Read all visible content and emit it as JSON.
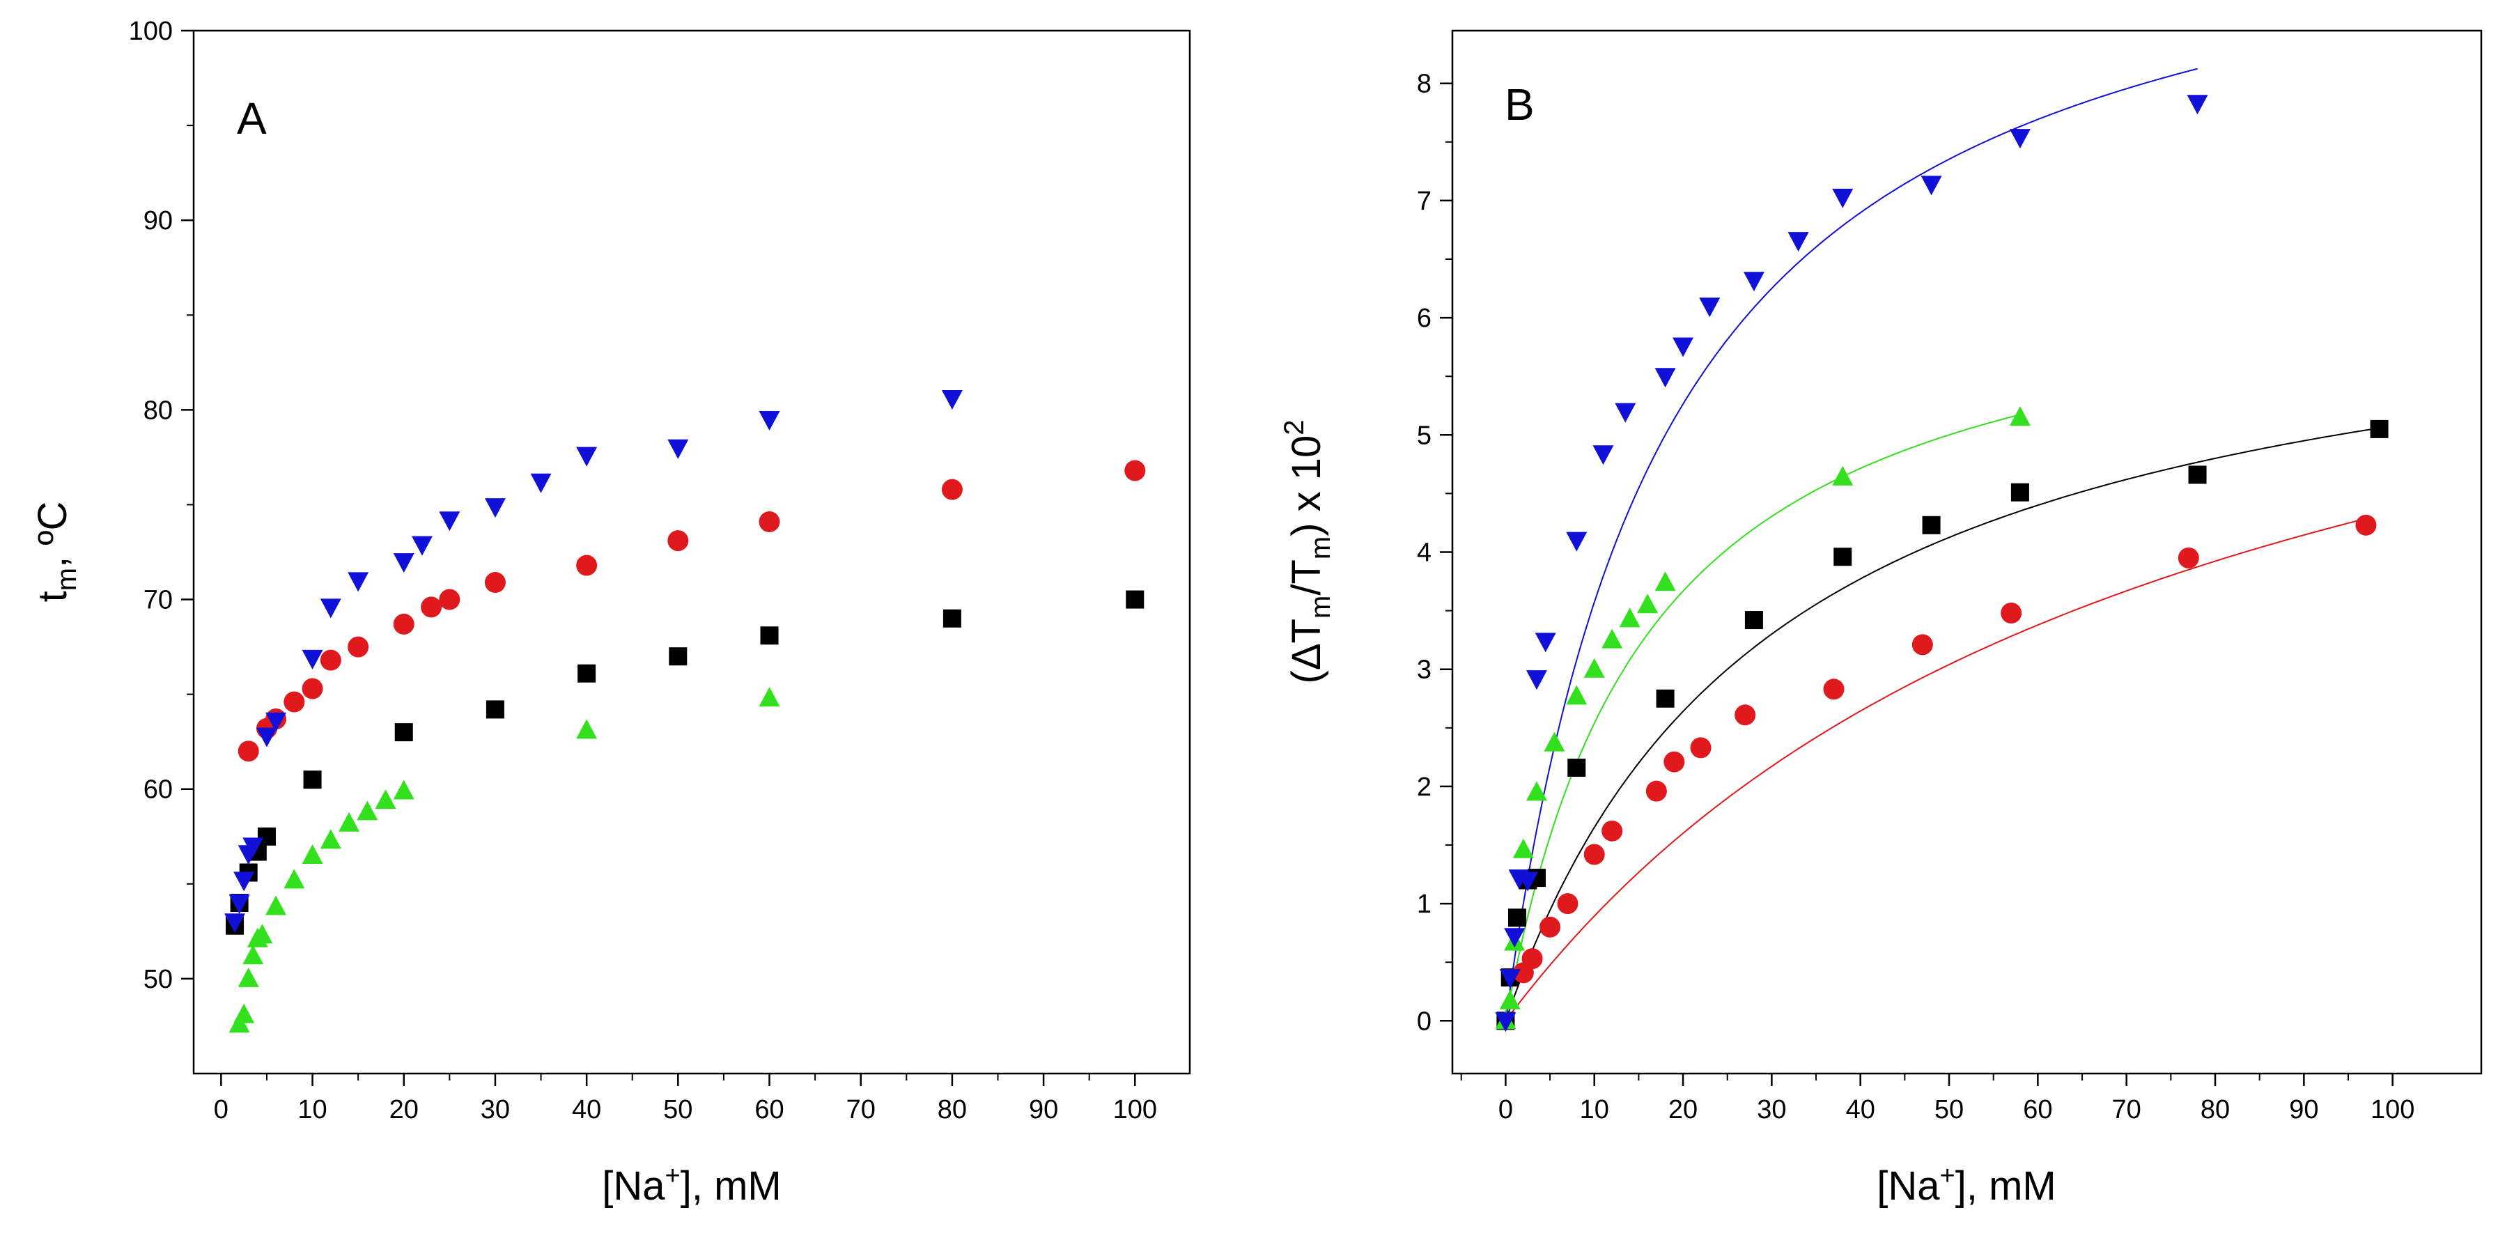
{
  "chart_data": [
    {
      "id": "A",
      "type": "scatter",
      "panel_label": "A",
      "xlabel": {
        "pre": "[Na",
        "sup": "+",
        "post": "], mM"
      },
      "ylabel": {
        "pre": "t",
        "sub": "m",
        "post": ", ºC"
      },
      "xlim": [
        -3,
        106
      ],
      "ylim": [
        45,
        100
      ],
      "xticks": [
        0,
        10,
        20,
        30,
        40,
        50,
        60,
        70,
        80,
        90,
        100
      ],
      "yticks": [
        50,
        60,
        70,
        80,
        90,
        100
      ],
      "xminor": 5,
      "yminor": 5,
      "series": [
        {
          "name": "black",
          "marker": "square",
          "color": "#000000",
          "x": [
            1.5,
            2,
            3,
            4,
            5,
            10,
            20,
            30,
            40,
            50,
            60,
            80,
            100
          ],
          "y": [
            52.8,
            54.0,
            55.6,
            56.7,
            57.5,
            60.5,
            63.0,
            64.2,
            66.1,
            67.0,
            68.1,
            69.0,
            70.0
          ]
        },
        {
          "name": "red",
          "marker": "circle",
          "color": "#e0191e",
          "x": [
            3,
            5,
            6,
            8,
            10,
            12,
            15,
            20,
            23,
            25,
            30,
            40,
            50,
            60,
            80,
            100
          ],
          "y": [
            62.0,
            63.2,
            63.7,
            64.6,
            65.3,
            66.8,
            67.5,
            68.7,
            69.6,
            70.0,
            70.9,
            71.8,
            73.1,
            74.1,
            75.8,
            76.8
          ]
        },
        {
          "name": "green",
          "marker": "triangle-up",
          "color": "#33e01d",
          "x": [
            2,
            2.5,
            3,
            3.5,
            4,
            4.5,
            6,
            8,
            10,
            12,
            14,
            16,
            18,
            20,
            40,
            60
          ],
          "y": [
            47.6,
            48.1,
            50.0,
            51.2,
            52.1,
            52.3,
            53.8,
            55.2,
            56.5,
            57.3,
            58.2,
            58.8,
            59.4,
            59.9,
            63.1,
            64.8
          ]
        },
        {
          "name": "blue",
          "marker": "triangle-down",
          "color": "#1010d8",
          "x": [
            1.5,
            2,
            2.5,
            3,
            3.5,
            5,
            6,
            10,
            12,
            15,
            20,
            22,
            25,
            30,
            35,
            40,
            50,
            60,
            80
          ],
          "y": [
            53.0,
            54.0,
            55.2,
            56.6,
            57.0,
            62.8,
            63.6,
            66.9,
            69.6,
            71.0,
            72.0,
            72.9,
            74.2,
            74.9,
            76.2,
            77.6,
            78.0,
            79.5,
            80.6
          ]
        }
      ]
    },
    {
      "id": "B",
      "type": "scatter",
      "panel_label": "B",
      "xlabel": {
        "pre": "[Na",
        "sup": "+",
        "post": "], mM"
      },
      "ylabel": {
        "pre": "(ΔT",
        "sub1": "m",
        "mid": "/T",
        "sub2": "m",
        "post": ") x 10",
        "sup": "2"
      },
      "xlim": [
        -6,
        110
      ],
      "ylim": [
        -0.45,
        8.45
      ],
      "xticks": [
        0,
        10,
        20,
        30,
        40,
        50,
        60,
        70,
        80,
        90,
        100
      ],
      "yticks": [
        0,
        1,
        2,
        3,
        4,
        5,
        6,
        7,
        8
      ],
      "xminor": 5,
      "yminor": 0.5,
      "series": [
        {
          "name": "black",
          "marker": "square",
          "color": "#000000",
          "x": [
            0,
            0.5,
            1.3,
            2.5,
            3.5,
            8,
            18,
            28,
            38,
            48,
            58,
            78,
            98.5
          ],
          "y": [
            0.0,
            0.37,
            0.88,
            1.2,
            1.22,
            2.16,
            2.75,
            3.42,
            3.96,
            4.23,
            4.51,
            4.66,
            5.05
          ],
          "fit": {
            "a": 6.6,
            "k": 30,
            "xmax": 98.5,
            "color": "#000000"
          }
        },
        {
          "name": "red",
          "marker": "circle",
          "color": "#e0191e",
          "x": [
            2,
            3,
            5,
            7,
            10,
            12,
            17,
            19,
            22,
            27,
            37,
            47,
            57,
            77,
            97
          ],
          "y": [
            0.41,
            0.53,
            0.8,
            1.0,
            1.42,
            1.62,
            1.96,
            2.21,
            2.33,
            2.61,
            2.83,
            3.21,
            3.48,
            3.95,
            4.23
          ],
          "fit": {
            "a": 7.6,
            "k": 75,
            "xmax": 97,
            "color": "#e0191e"
          }
        },
        {
          "name": "green",
          "marker": "triangle-up",
          "color": "#33e01d",
          "x": [
            0,
            0.5,
            1,
            2,
            3.5,
            5.5,
            8,
            10,
            12,
            14,
            16,
            18,
            38,
            58
          ],
          "y": [
            0.0,
            0.17,
            0.67,
            1.46,
            1.95,
            2.37,
            2.77,
            3.0,
            3.25,
            3.43,
            3.55,
            3.74,
            4.64,
            5.15
          ],
          "fit": {
            "a": 6.6,
            "k": 16,
            "xmax": 58,
            "color": "#33e01d"
          }
        },
        {
          "name": "blue",
          "marker": "triangle-down",
          "color": "#1010d8",
          "x": [
            0,
            0.5,
            1,
            1.5,
            2.5,
            3.5,
            4.5,
            8,
            11,
            13.5,
            18,
            20,
            23,
            28,
            33,
            38,
            48,
            58,
            78
          ],
          "y": [
            0.0,
            0.37,
            0.72,
            1.22,
            1.2,
            2.92,
            3.24,
            4.1,
            4.84,
            5.2,
            5.5,
            5.76,
            6.1,
            6.32,
            6.66,
            7.03,
            7.14,
            7.54,
            7.83
          ],
          "fit": {
            "a": 10.0,
            "k": 18,
            "xmax": 78,
            "color": "#1010d8"
          }
        }
      ]
    }
  ]
}
